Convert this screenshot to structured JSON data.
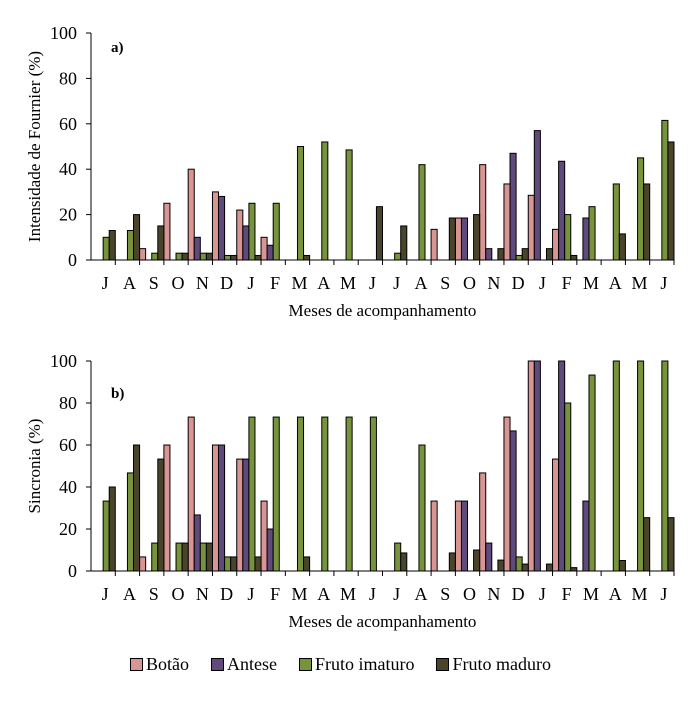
{
  "chart_data": [
    {
      "type": "bar",
      "panel_label": "a)",
      "title": "",
      "xlabel": "Meses de acompanhamento",
      "ylabel": "Intensidade de Fournier (%)",
      "ylim": [
        0,
        100
      ],
      "yticks": [
        0,
        20,
        40,
        60,
        80,
        100
      ],
      "grid": false,
      "categories": [
        "J",
        "A",
        "S",
        "O",
        "N",
        "D",
        "J",
        "F",
        "M",
        "A",
        "M",
        "J",
        "J",
        "A",
        "S",
        "O",
        "N",
        "D",
        "J",
        "F",
        "M",
        "A",
        "M",
        "J"
      ],
      "series": [
        {
          "name": "Botão",
          "values": [
            0,
            0,
            5,
            25,
            40,
            30,
            22,
            10,
            0,
            0,
            0,
            0,
            0,
            0,
            13.5,
            18.5,
            42,
            33.5,
            28.5,
            13.5,
            0,
            0,
            0,
            0
          ]
        },
        {
          "name": "Antese",
          "values": [
            0,
            0,
            0,
            0,
            10,
            28,
            15,
            6.5,
            0,
            0,
            0,
            0,
            0,
            0,
            0,
            18.5,
            5,
            47,
            57,
            43.5,
            18.5,
            0,
            0,
            0
          ]
        },
        {
          "name": "Fruto imaturo",
          "values": [
            10,
            13,
            3,
            3,
            3,
            2,
            25,
            25,
            50,
            52,
            48.5,
            0,
            3,
            42,
            0,
            0,
            0,
            2,
            0,
            20,
            23.5,
            33.5,
            45,
            61.5
          ]
        },
        {
          "name": "Fruto maduro",
          "values": [
            13,
            20,
            15,
            3,
            3,
            2,
            2,
            0,
            2,
            0,
            0,
            23.5,
            15,
            0,
            18.5,
            20,
            5,
            5,
            5,
            2,
            0,
            11.5,
            33.5,
            52
          ]
        }
      ]
    },
    {
      "type": "bar",
      "panel_label": "b)",
      "title": "",
      "xlabel": "Meses de acompanhamento",
      "ylabel": "Sincronia (%)",
      "ylim": [
        0,
        100
      ],
      "yticks": [
        0,
        20,
        40,
        60,
        80,
        100
      ],
      "grid": false,
      "categories": [
        "J",
        "A",
        "S",
        "O",
        "N",
        "D",
        "J",
        "F",
        "M",
        "A",
        "M",
        "J",
        "J",
        "A",
        "S",
        "O",
        "N",
        "D",
        "J",
        "F",
        "M",
        "A",
        "M",
        "J"
      ],
      "series": [
        {
          "name": "Botão",
          "values": [
            0,
            0,
            6.7,
            60,
            73.3,
            60,
            53.3,
            33.3,
            0,
            0,
            0,
            0,
            0,
            0,
            33.3,
            33.3,
            46.7,
            73.3,
            100,
            53.3,
            0,
            0,
            0,
            0
          ]
        },
        {
          "name": "Antese",
          "values": [
            0,
            0,
            0,
            0,
            26.7,
            60,
            53.3,
            20,
            0,
            0,
            0,
            0,
            0,
            0,
            0,
            33.3,
            13.3,
            66.7,
            100,
            100,
            33.3,
            0,
            0,
            0
          ]
        },
        {
          "name": "Fruto imaturo",
          "values": [
            33.3,
            46.7,
            13.3,
            13.3,
            13.3,
            6.7,
            73.3,
            73.3,
            73.3,
            73.3,
            73.3,
            73.3,
            13.3,
            60,
            0,
            0,
            0,
            6.7,
            0,
            80,
            93.3,
            100,
            100,
            100
          ]
        },
        {
          "name": "Fruto maduro",
          "values": [
            40,
            60,
            53.3,
            13.3,
            13.3,
            6.7,
            6.7,
            0,
            6.7,
            0,
            0,
            0,
            8.6,
            0,
            8.6,
            10,
            5.2,
            3.3,
            3.3,
            1.6,
            0,
            5,
            25.4,
            25.4
          ]
        }
      ]
    }
  ],
  "legend": {
    "position": "bottom",
    "items": [
      {
        "label": "Botão",
        "color": "#d99594"
      },
      {
        "label": "Antese",
        "color": "#604a7b"
      },
      {
        "label": "Fruto imaturo",
        "color": "#77933c"
      },
      {
        "label": "Fruto maduro",
        "color": "#4a452a"
      }
    ]
  }
}
